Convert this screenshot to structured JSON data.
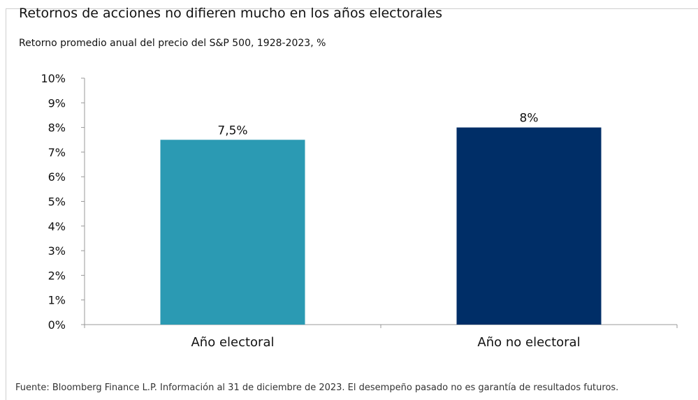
{
  "header": {
    "title": "Retornos de acciones no difieren mucho en los años electorales",
    "subtitle": "Retorno promedio anual del precio del S&P 500, 1928-2023, %"
  },
  "footer": {
    "source": "Fuente: Bloomberg Finance L.P. Información al 31 de diciembre de 2023. El desempeño pasado no es garantía de resultados futuros."
  },
  "chart_data": {
    "type": "bar",
    "title": "Retornos de acciones no difieren mucho en los años electorales",
    "subtitle": "Retorno promedio anual del precio del S&P 500, 1928-2023, %",
    "categories": [
      "Año electoral",
      "Año no electoral"
    ],
    "values": [
      7.5,
      8.0
    ],
    "data_labels": [
      "7,5%",
      "8%"
    ],
    "colors": [
      "#2b9ab3",
      "#002e67"
    ],
    "ylim": [
      0,
      10
    ],
    "yticks": [
      0,
      1,
      2,
      3,
      4,
      5,
      6,
      7,
      8,
      9,
      10
    ],
    "ytick_labels": [
      "0%",
      "1%",
      "2%",
      "3%",
      "4%",
      "5%",
      "6%",
      "7%",
      "8%",
      "9%",
      "10%"
    ],
    "xlabel": "",
    "ylabel": "",
    "grid": false,
    "legend": "none",
    "axis_color": "#999999"
  }
}
